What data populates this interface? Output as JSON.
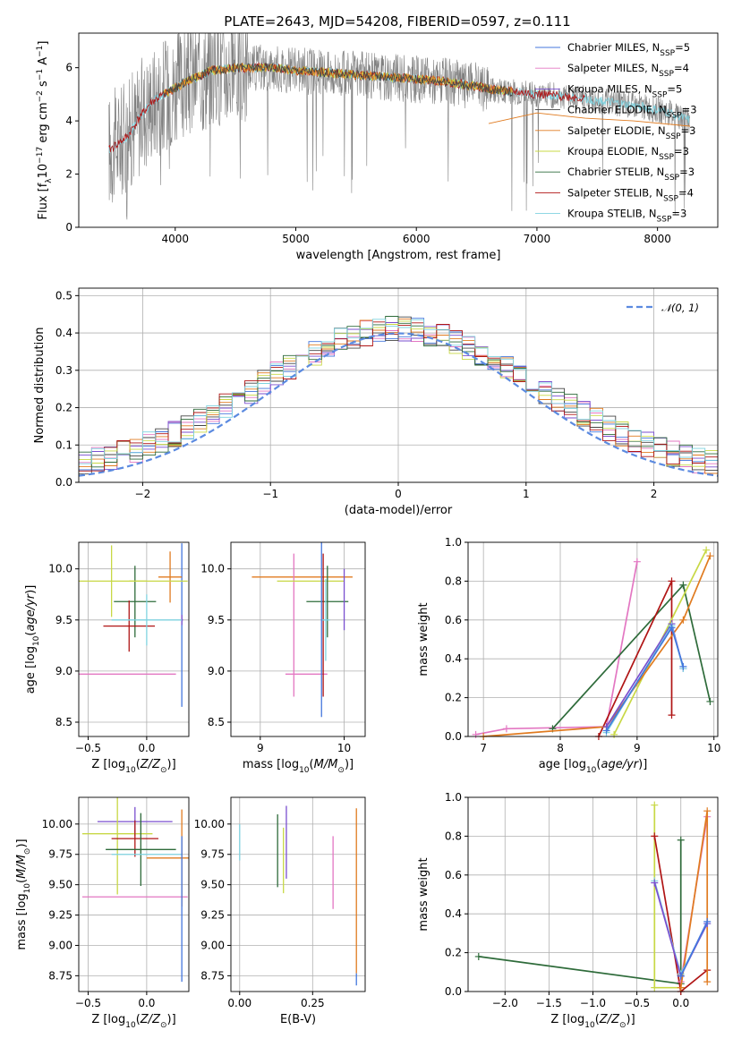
{
  "figure": {
    "title": "PLATE=2643, MJD=54208, FIBERID=0597, z=0.111"
  },
  "colors": {
    "Chabrier MILES": "#4477dd",
    "Salpeter MILES": "#e377c2",
    "Kroupa MILES": "#7a4fcf",
    "Chabrier ELODIE": "#444444",
    "Salpeter ELODIE": "#e07b20",
    "Kroupa ELODIE": "#c8d845",
    "Chabrier STELIB": "#2e6b3a",
    "Salpeter STELIB": "#b01515",
    "Kroupa STELIB": "#7fd3e0",
    "data": "#808080",
    "normal": "#5b8ae0"
  },
  "chart_data": [
    {
      "id": "spectrum",
      "type": "line",
      "xlabel": "wavelength [Angstrom, rest frame]",
      "ylabel": "Flux [f_λ10^-17 erg cm^-2 s^-1 A^-1]",
      "xlim": [
        3200,
        8500
      ],
      "ylim": [
        0,
        7.3
      ],
      "xticks": [
        4000,
        5000,
        6000,
        7000,
        8000
      ],
      "yticks": [
        0,
        2,
        4,
        6
      ],
      "legend_position": "top-right",
      "legend": [
        {
          "model": "Chabrier MILES",
          "label": "Chabrier MILES, N",
          "sub": "SSP",
          "suffix": "=5"
        },
        {
          "model": "Salpeter MILES",
          "label": "Salpeter MILES, N",
          "sub": "SSP",
          "suffix": "=4"
        },
        {
          "model": "Kroupa MILES",
          "label": "Kroupa MILES, N",
          "sub": "SSP",
          "suffix": "=5"
        },
        {
          "model": "Chabrier ELODIE",
          "label": "Chabrier ELODIE, N",
          "sub": "SSP",
          "suffix": "=3"
        },
        {
          "model": "Salpeter ELODIE",
          "label": "Salpeter ELODIE, N",
          "sub": "SSP",
          "suffix": "=3"
        },
        {
          "model": "Kroupa ELODIE",
          "label": "Kroupa ELODIE, N",
          "sub": "SSP",
          "suffix": "=3"
        },
        {
          "model": "Chabrier STELIB",
          "label": "Chabrier STELIB, N",
          "sub": "SSP",
          "suffix": "=3"
        },
        {
          "model": "Salpeter STELIB",
          "label": "Salpeter STELIB, N",
          "sub": "SSP",
          "suffix": "=4"
        },
        {
          "model": "Kroupa STELIB",
          "label": "Kroupa STELIB, N",
          "sub": "SSP",
          "suffix": "=3"
        }
      ],
      "continuum": {
        "x": [
          3450,
          3600,
          3700,
          3800,
          3950,
          4100,
          4300,
          4500,
          4800,
          5000,
          5300,
          5600,
          5900,
          6200,
          6500,
          6600,
          7000,
          7300,
          7600,
          7900,
          8100,
          8270
        ],
        "y": [
          2.9,
          3.4,
          4.1,
          4.7,
          5.1,
          5.5,
          5.9,
          6.0,
          6.0,
          5.9,
          5.8,
          5.7,
          5.6,
          5.5,
          5.3,
          5.2,
          5.0,
          4.9,
          4.7,
          4.5,
          4.3,
          4.0
        ]
      },
      "model_ranges": [
        {
          "model": "Kroupa STELIB",
          "x": [
            3450,
            8270
          ]
        },
        {
          "model": "Salpeter STELIB",
          "x": [
            3450,
            7400
          ]
        },
        {
          "model": "Kroupa ELODIE",
          "x": [
            3900,
            6800
          ]
        },
        {
          "model": "Salpeter ELODIE",
          "x": [
            3900,
            6800
          ]
        },
        {
          "model": "Chabrier ELODIE",
          "x": [
            3900,
            6800
          ]
        }
      ],
      "elodie_tail": {
        "x": [
          6600,
          7000,
          7400,
          7800,
          8270
        ],
        "y": [
          3.9,
          4.3,
          4.1,
          4.0,
          3.8
        ]
      }
    },
    {
      "id": "residuals",
      "type": "line",
      "xlabel": "(data-model)/error",
      "ylabel": "Normed distribution",
      "xlim": [
        -2.5,
        2.5
      ],
      "ylim": [
        0,
        0.52
      ],
      "xticks": [
        -2,
        -1,
        0,
        1,
        2
      ],
      "yticks": [
        0.0,
        0.1,
        0.2,
        0.3,
        0.4,
        0.5
      ],
      "grid": true,
      "legend_position": "top-right",
      "normal_label": "𝒩(0, 1)",
      "normal": {
        "mean": 0,
        "sigma": 1
      }
    },
    {
      "id": "age-vs-Z",
      "type": "scatter",
      "xlabel": "Z [log10(Z/Z⊙)]",
      "ylabel": "age  [log10(age/yr)]",
      "xlim": [
        -0.58,
        0.36
      ],
      "ylim": [
        8.36,
        10.26
      ],
      "xticks": [
        -0.5,
        0.0
      ],
      "yticks": [
        8.5,
        9.0,
        9.5,
        10.0
      ],
      "grid": true,
      "points": [
        {
          "model": "Chabrier MILES",
          "x": 0.3,
          "y": 9.45,
          "xerr": 0.0,
          "yerr": 0.8
        },
        {
          "model": "Kroupa MILES",
          "x": 0.3,
          "y": 9.5,
          "xerr": 0.01,
          "yerr": 0.05
        },
        {
          "model": "Kroupa ELODIE",
          "x": -0.3,
          "y": 9.88,
          "xerr": 0.3,
          "yerr": 0.35
        },
        {
          "model": "Salpeter ELODIE",
          "x": 0.2,
          "y": 9.92,
          "xerr": 0.1,
          "yerr": 0.25
        },
        {
          "model": "Chabrier STELIB",
          "x": -0.1,
          "y": 9.68,
          "xerr": 0.18,
          "yerr": 0.35
        },
        {
          "model": "Salpeter STELIB",
          "x": -0.15,
          "y": 9.44,
          "xerr": 0.22,
          "yerr": 0.25
        },
        {
          "model": "Kroupa STELIB",
          "x": 0.0,
          "y": 9.5,
          "xerr": 0.3,
          "yerr": 0.25
        },
        {
          "model": "Salpeter MILES",
          "x": -0.2,
          "y": 8.97,
          "xerr": 0.45,
          "yerr": 0.0
        },
        {
          "model": "Kroupa ELODIE",
          "x": 0.1,
          "y": 9.88,
          "xerr": 0.25,
          "yerr": 0.0
        }
      ]
    },
    {
      "id": "age-vs-mass",
      "type": "scatter",
      "xlabel": "mass [log10(M/M⊙)]",
      "ylabel": "",
      "xlim": [
        8.65,
        10.25
      ],
      "ylim": [
        8.36,
        10.26
      ],
      "xticks": [
        9,
        10
      ],
      "yticks": [
        8.5,
        9.0,
        9.5,
        10.0
      ],
      "grid": true,
      "points": [
        {
          "model": "Salpeter ELODIE",
          "x": 9.5,
          "y": 9.92,
          "xerr": 0.6,
          "yerr": 0.0
        },
        {
          "model": "Salpeter MILES",
          "x": 9.4,
          "y": 9.45,
          "xerr": 0.0,
          "yerr": 0.7
        },
        {
          "model": "Salpeter MILES",
          "x": 9.55,
          "y": 8.97,
          "xerr": 0.25,
          "yerr": 0.0
        },
        {
          "model": "Kroupa ELODIE",
          "x": 9.6,
          "y": 9.88,
          "xerr": 0.4,
          "yerr": 0.0
        },
        {
          "model": "Chabrier STELIB",
          "x": 9.8,
          "y": 9.68,
          "xerr": 0.25,
          "yerr": 0.35
        },
        {
          "model": "Salpeter STELIB",
          "x": 9.75,
          "y": 9.45,
          "xerr": 0.0,
          "yerr": 0.7
        },
        {
          "model": "Kroupa STELIB",
          "x": 9.78,
          "y": 9.5,
          "xerr": 0.05,
          "yerr": 0.4
        },
        {
          "model": "Kroupa MILES",
          "x": 10.0,
          "y": 9.7,
          "xerr": 0.0,
          "yerr": 0.3
        },
        {
          "model": "Chabrier MILES",
          "x": 9.73,
          "y": 9.45,
          "xerr": 0.0,
          "yerr": 0.9
        }
      ]
    },
    {
      "id": "massweight-vs-age",
      "type": "line",
      "xlabel": "age  [log10(age/yr)]",
      "ylabel": "mass weight",
      "xlim": [
        6.8,
        10.05
      ],
      "ylim": [
        0,
        1.0
      ],
      "xticks": [
        7,
        8,
        9,
        10
      ],
      "yticks": [
        0.0,
        0.2,
        0.4,
        0.6,
        0.8,
        1.0
      ],
      "grid": true,
      "series": [
        {
          "model": "Salpeter MILES",
          "x": [
            6.9,
            7.3,
            8.6,
            9.0
          ],
          "y": [
            0.01,
            0.04,
            0.05,
            0.9
          ]
        },
        {
          "model": "Chabrier STELIB",
          "x": [
            7.9,
            9.6,
            9.95
          ],
          "y": [
            0.04,
            0.78,
            0.18
          ]
        },
        {
          "model": "Salpeter STELIB",
          "x": [
            8.5,
            9.45,
            9.45
          ],
          "y": [
            0.0,
            0.8,
            0.11
          ]
        },
        {
          "model": "Kroupa ELODIE",
          "x": [
            8.7,
            9.9
          ],
          "y": [
            0.01,
            0.96
          ]
        },
        {
          "model": "Salpeter ELODIE",
          "x": [
            7.0,
            8.6,
            9.6,
            9.95
          ],
          "y": [
            0.0,
            0.05,
            0.6,
            0.93
          ]
        },
        {
          "model": "Kroupa MILES",
          "x": [
            8.6,
            9.45,
            9.6
          ],
          "y": [
            0.05,
            0.58,
            0.35
          ]
        },
        {
          "model": "Kroupa STELIB",
          "x": [
            8.6,
            9.45,
            9.6
          ],
          "y": [
            0.02,
            0.57,
            0.35
          ]
        },
        {
          "model": "Chabrier MILES",
          "x": [
            8.6,
            9.45,
            9.6
          ],
          "y": [
            0.03,
            0.56,
            0.36
          ]
        }
      ]
    },
    {
      "id": "mass-vs-Z",
      "type": "scatter",
      "xlabel": "Z [log10(Z/Z⊙)]",
      "ylabel": "mass [log10(M/M⊙)]",
      "xlim": [
        -0.58,
        0.36
      ],
      "ylim": [
        8.62,
        10.22
      ],
      "xticks": [
        -0.5,
        0.0
      ],
      "yticks": [
        8.75,
        9.0,
        9.25,
        9.5,
        9.75,
        10.0
      ],
      "grid": true,
      "points": [
        {
          "model": "Kroupa MILES",
          "x": -0.1,
          "y": 10.02,
          "xerr": 0.32,
          "yerr": 0.12
        },
        {
          "model": "Kroupa ELODIE",
          "x": -0.25,
          "y": 9.92,
          "xerr": 0.3,
          "yerr": 0.5
        },
        {
          "model": "Salpeter STELIB",
          "x": -0.1,
          "y": 9.88,
          "xerr": 0.2,
          "yerr": 0.15
        },
        {
          "model": "Chabrier STELIB",
          "x": -0.05,
          "y": 9.79,
          "xerr": 0.3,
          "yerr": 0.3
        },
        {
          "model": "Salpeter MILES",
          "x": -0.1,
          "y": 9.4,
          "xerr": 0.45,
          "yerr": 0.0
        },
        {
          "model": "Salpeter ELODIE",
          "x": 0.3,
          "y": 9.72,
          "xerr": 0.3,
          "yerr": 0.4
        },
        {
          "model": "Kroupa STELIB",
          "x": 0.0,
          "y": 9.75,
          "xerr": 0.3,
          "yerr": 0.0
        },
        {
          "model": "Chabrier MILES",
          "x": 0.3,
          "y": 9.3,
          "xerr": 0.0,
          "yerr": 0.6
        }
      ]
    },
    {
      "id": "mass-vs-ebv",
      "type": "scatter",
      "xlabel": "E(B-V)",
      "ylabel": "",
      "xlim": [
        -0.03,
        0.43
      ],
      "ylim": [
        8.62,
        10.22
      ],
      "xticks": [
        0.0,
        0.25
      ],
      "yticks": [
        8.75,
        9.0,
        9.25,
        9.5,
        9.75,
        10.0
      ],
      "grid": true,
      "points": [
        {
          "model": "Kroupa STELIB",
          "x": 0.0,
          "y": 9.85,
          "xerr": 0,
          "yerr": 0.15
        },
        {
          "model": "Chabrier STELIB",
          "x": 0.13,
          "y": 9.78,
          "xerr": 0,
          "yerr": 0.3
        },
        {
          "model": "Kroupa ELODIE",
          "x": 0.15,
          "y": 9.7,
          "xerr": 0,
          "yerr": 0.27
        },
        {
          "model": "Kroupa MILES",
          "x": 0.16,
          "y": 9.85,
          "xerr": 0,
          "yerr": 0.3
        },
        {
          "model": "Salpeter MILES",
          "x": 0.32,
          "y": 9.6,
          "xerr": 0,
          "yerr": 0.3
        },
        {
          "model": "Salpeter ELODIE",
          "x": 0.4,
          "y": 9.45,
          "xerr": 0,
          "yerr": 0.68
        },
        {
          "model": "Chabrier MILES",
          "x": 0.4,
          "y": 8.72,
          "xerr": 0,
          "yerr": 0.05
        }
      ]
    },
    {
      "id": "massweight-vs-Z",
      "type": "line",
      "xlabel": "Z [log10(Z/Z⊙)]",
      "ylabel": "mass weight",
      "xlim": [
        -2.42,
        0.42
      ],
      "ylim": [
        0,
        1.0
      ],
      "xticks": [
        -2.0,
        -1.5,
        -1.0,
        -0.5,
        0.0
      ],
      "yticks": [
        0.0,
        0.2,
        0.4,
        0.6,
        0.8,
        1.0
      ],
      "grid": true,
      "series": [
        {
          "model": "Chabrier STELIB",
          "x": [
            -2.3,
            0.0,
            0.0
          ],
          "y": [
            0.18,
            0.04,
            0.78
          ]
        },
        {
          "model": "Kroupa ELODIE",
          "x": [
            -0.3,
            -0.3,
            0.0
          ],
          "y": [
            0.96,
            0.02,
            0.02
          ]
        },
        {
          "model": "Salpeter STELIB",
          "x": [
            -0.3,
            0.0,
            0.3
          ],
          "y": [
            0.8,
            0.0,
            0.11
          ]
        },
        {
          "model": "Salpeter MILES",
          "x": [
            0.0,
            0.3
          ],
          "y": [
            0.05,
            0.9
          ]
        },
        {
          "model": "Salpeter ELODIE",
          "x": [
            0.0,
            0.3,
            0.3
          ],
          "y": [
            0.02,
            0.93,
            0.05
          ]
        },
        {
          "model": "Kroupa STELIB",
          "x": [
            -0.3,
            0.0,
            0.3
          ],
          "y": [
            0.57,
            0.09,
            0.35
          ]
        },
        {
          "model": "Kroupa MILES",
          "x": [
            -0.3,
            0.0,
            0.3
          ],
          "y": [
            0.56,
            0.08,
            0.35
          ]
        },
        {
          "model": "Chabrier MILES",
          "x": [
            0.0,
            0.3
          ],
          "y": [
            0.08,
            0.36
          ]
        }
      ]
    }
  ]
}
